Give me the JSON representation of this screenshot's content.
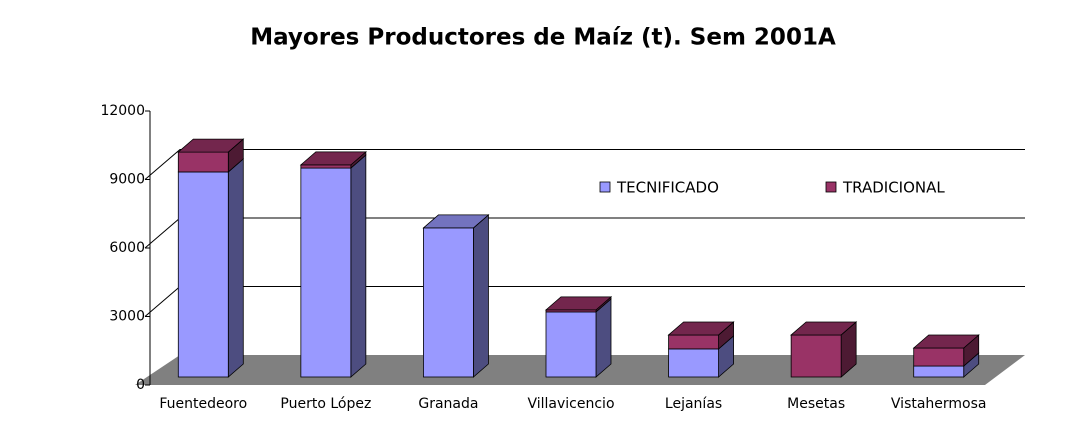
{
  "chart_data": {
    "type": "bar3d_stacked",
    "title": "Mayores Productores de Maíz (t). Sem 2001A",
    "categories": [
      "Fuentedeoro",
      "Puerto López",
      "Granada",
      "Villavicencio",
      "Lejanías",
      "Mesetas",
      "Vistahermosa"
    ],
    "series": [
      {
        "name": "TECNIFICADO",
        "color": "#9999ff",
        "values": [
          8980,
          9150,
          6530,
          2850,
          1230,
          0,
          480
        ]
      },
      {
        "name": "TRADICIONAL",
        "color": "#993366",
        "values": [
          870,
          140,
          0,
          90,
          610,
          1840,
          790
        ]
      }
    ],
    "ylim": [
      0,
      12000
    ],
    "yticks": [
      0,
      3000,
      6000,
      9000,
      12000
    ],
    "grid": true
  }
}
